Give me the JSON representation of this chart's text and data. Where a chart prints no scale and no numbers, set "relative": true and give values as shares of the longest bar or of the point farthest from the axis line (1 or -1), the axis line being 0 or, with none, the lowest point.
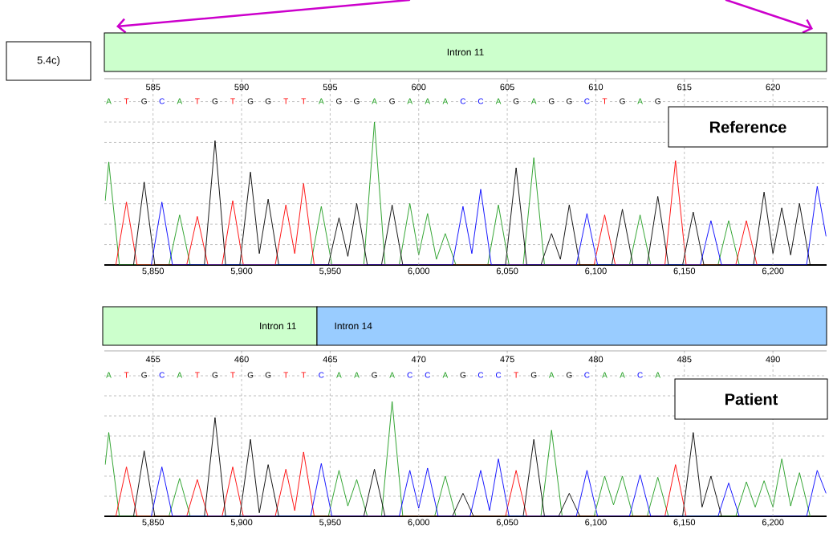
{
  "chart_data": [
    {
      "type": "line",
      "relative": true,
      "grid": true,
      "xlim": [
        5822.5,
        6230.3
      ],
      "xticks": [
        {
          "value": 5850,
          "label": "5,850"
        },
        {
          "value": 5900,
          "label": "5,900"
        },
        {
          "value": 5950,
          "label": "5,950"
        },
        {
          "value": 6000,
          "label": "6,000"
        },
        {
          "value": 6050,
          "label": "6,050"
        },
        {
          "value": 6100,
          "label": "6,100"
        },
        {
          "value": 6150,
          "label": "6,150"
        },
        {
          "value": 6200,
          "label": "6,200"
        }
      ],
      "x2lim": [
        582.25,
        623.03
      ],
      "x2ticks": [
        585,
        590,
        595,
        600,
        605,
        610,
        615,
        620
      ],
      "series": [
        {
          "color": "#1f9c1f",
          "x": [
            5823,
            5825,
            5831,
            5859,
            5865,
            5871,
            5939,
            5945,
            5951,
            5969,
            5975,
            5981,
            5989,
            5995,
            6000,
            6005,
            6010,
            6015,
            6021,
            6039,
            6045,
            6051,
            6059,
            6065,
            6071,
            6119,
            6125,
            6131,
            6169,
            6175,
            6181
          ],
          "values": [
            0.45,
            0.72,
            0,
            0,
            0.35,
            0,
            0,
            0.41,
            0,
            0,
            1,
            0,
            0,
            0.43,
            0.07,
            0.36,
            0.04,
            0.22,
            0,
            0,
            0.42,
            0,
            0,
            0.75,
            0,
            0,
            0.35,
            0,
            0,
            0.31,
            0
          ]
        },
        {
          "color": "#ff0000",
          "x": [
            5829,
            5835,
            5841,
            5869,
            5875,
            5881,
            5889,
            5895,
            5901,
            5919,
            5925,
            5930,
            5935,
            5941,
            6099,
            6105,
            6111,
            6139,
            6145,
            6151,
            6179,
            6185,
            6191
          ],
          "values": [
            0,
            0.44,
            0,
            0,
            0.34,
            0,
            0,
            0.45,
            0,
            0,
            0.42,
            0.08,
            0.57,
            0,
            0,
            0.35,
            0,
            0,
            0.73,
            0,
            0,
            0.31,
            0
          ]
        },
        {
          "color": "#000000",
          "x": [
            5839,
            5845,
            5851,
            5879,
            5885,
            5891,
            5899,
            5905,
            5910,
            5915,
            5921,
            5949,
            5955,
            5960,
            5965,
            5971,
            5979,
            5985,
            5991,
            6049,
            6055,
            6061,
            6069,
            6075,
            6080,
            6085,
            6091,
            6109,
            6115,
            6121,
            6129,
            6135,
            6141,
            6149,
            6155,
            6161,
            6189,
            6195,
            6200,
            6205,
            6210,
            6215,
            6221
          ],
          "values": [
            0,
            0.58,
            0,
            0,
            0.87,
            0,
            0,
            0.65,
            0.08,
            0.46,
            0,
            0,
            0.33,
            0.06,
            0.43,
            0,
            0,
            0.42,
            0,
            0,
            0.68,
            0,
            0,
            0.22,
            0.04,
            0.42,
            0,
            0,
            0.39,
            0,
            0,
            0.48,
            0,
            0,
            0.37,
            0,
            0,
            0.51,
            0.08,
            0.4,
            0.07,
            0.43,
            0
          ]
        },
        {
          "color": "#0000ff",
          "x": [
            5849,
            5855,
            5861,
            6019,
            6025,
            6030,
            6035,
            6041,
            6089,
            6095,
            6101,
            6159,
            6165,
            6171,
            6219,
            6225,
            6230
          ],
          "values": [
            0,
            0.44,
            0,
            0,
            0.41,
            0.08,
            0.53,
            0,
            0,
            0.36,
            0,
            0,
            0.31,
            0,
            0,
            0.55,
            0.2
          ]
        }
      ],
      "annotations": [
        "5.4c)",
        "Intron 11",
        "Reference",
        "A",
        "T",
        "G",
        "C",
        "A",
        "T",
        "G",
        "T",
        "G",
        "G",
        "T",
        "T",
        "A",
        "G",
        "G",
        "A",
        "G",
        "A",
        "A",
        "A",
        "C",
        "C",
        "A",
        "G",
        "A",
        "G",
        "G",
        "C",
        "T",
        "G",
        "A",
        "G"
      ]
    },
    {
      "type": "line",
      "relative": true,
      "grid": true,
      "xlim": [
        5822.5,
        6230.3
      ],
      "xticks": [
        {
          "value": 5850,
          "label": "5,850"
        },
        {
          "value": 5900,
          "label": "5,900"
        },
        {
          "value": 5950,
          "label": "5,950"
        },
        {
          "value": 6000,
          "label": "6,000"
        },
        {
          "value": 6050,
          "label": "6,050"
        },
        {
          "value": 6100,
          "label": "6,100"
        },
        {
          "value": 6150,
          "label": "6,150"
        },
        {
          "value": 6200,
          "label": "6,200"
        }
      ],
      "x2lim": [
        452.25,
        493.03
      ],
      "x2ticks": [
        455,
        460,
        465,
        470,
        475,
        480,
        485,
        490
      ],
      "series": [
        {
          "color": "#1f9c1f",
          "x": [
            5823,
            5825,
            5831,
            5859,
            5865,
            5871,
            5949,
            5955,
            5960,
            5965,
            5971,
            5979,
            5985,
            5991,
            6009,
            6015,
            6021,
            6069,
            6075,
            6081,
            6099,
            6105,
            6110,
            6115,
            6121,
            6129,
            6135,
            6141,
            6179,
            6185,
            6190,
            6195,
            6200,
            6205,
            6210,
            6215,
            6221
          ],
          "values": [
            0.45,
            0.73,
            0,
            0,
            0.33,
            0,
            0,
            0.4,
            0.09,
            0.32,
            0,
            0,
            1,
            0,
            0,
            0.35,
            0,
            0,
            0.75,
            0,
            0,
            0.35,
            0.1,
            0.35,
            0,
            0,
            0.34,
            0,
            0,
            0.3,
            0.08,
            0.31,
            0.08,
            0.5,
            0.09,
            0.38,
            0
          ]
        },
        {
          "color": "#ff0000",
          "x": [
            5829,
            5835,
            5841,
            5869,
            5875,
            5881,
            5889,
            5895,
            5901,
            5919,
            5925,
            5930,
            5935,
            5941,
            6049,
            6055,
            6061,
            6139,
            6145,
            6151
          ],
          "values": [
            0,
            0.43,
            0,
            0,
            0.32,
            0,
            0,
            0.43,
            0,
            0,
            0.41,
            0.05,
            0.56,
            0,
            0,
            0.4,
            0,
            0,
            0.45,
            0
          ]
        },
        {
          "color": "#000000",
          "x": [
            5839,
            5845,
            5851,
            5879,
            5885,
            5891,
            5899,
            5905,
            5910,
            5915,
            5921,
            5969,
            5975,
            5981,
            6019,
            6025,
            6031,
            6059,
            6065,
            6071,
            6079,
            6085,
            6091,
            6149,
            6155,
            6160,
            6165,
            6171
          ],
          "values": [
            0,
            0.57,
            0,
            0,
            0.86,
            0,
            0,
            0.67,
            0.03,
            0.45,
            0,
            0,
            0.41,
            0,
            0,
            0.2,
            0,
            0,
            0.67,
            0,
            0,
            0.2,
            0,
            0,
            0.73,
            0.08,
            0.35,
            0
          ]
        },
        {
          "color": "#0000ff",
          "x": [
            5849,
            5855,
            5861,
            5939,
            5945,
            5951,
            5989,
            5995,
            6000,
            6005,
            6011,
            6029,
            6035,
            6040,
            6045,
            6051,
            6089,
            6095,
            6101,
            6119,
            6125,
            6131,
            6169,
            6175,
            6181,
            6219,
            6225,
            6230
          ],
          "values": [
            0,
            0.43,
            0,
            0,
            0.46,
            0,
            0,
            0.4,
            0.07,
            0.42,
            0,
            0,
            0.4,
            0.05,
            0.5,
            0,
            0,
            0.4,
            0,
            0,
            0.36,
            0,
            0,
            0.29,
            0,
            0,
            0.4,
            0.2
          ]
        }
      ],
      "annotations": [
        "Intron 11",
        "Intron 14",
        "Patient",
        "A",
        "T",
        "G",
        "C",
        "A",
        "T",
        "G",
        "T",
        "G",
        "G",
        "T",
        "T",
        "C",
        "A",
        "A",
        "G",
        "A",
        "C",
        "C",
        "A",
        "G",
        "C",
        "C",
        "T",
        "G",
        "A",
        "G",
        "C",
        "A",
        "A",
        "C",
        "A"
      ]
    }
  ]
}
